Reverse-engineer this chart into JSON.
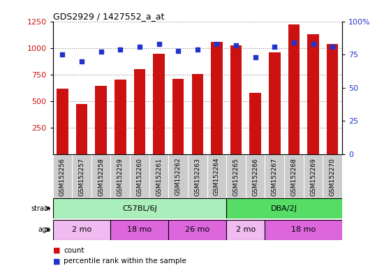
{
  "title": "GDS2929 / 1427552_a_at",
  "samples": [
    "GSM152256",
    "GSM152257",
    "GSM152258",
    "GSM152259",
    "GSM152260",
    "GSM152261",
    "GSM152262",
    "GSM152263",
    "GSM152264",
    "GSM152265",
    "GSM152266",
    "GSM152267",
    "GSM152268",
    "GSM152269",
    "GSM152270"
  ],
  "counts": [
    620,
    470,
    645,
    700,
    800,
    945,
    710,
    755,
    1060,
    1025,
    575,
    960,
    1220,
    1130,
    1040
  ],
  "percentile_ranks": [
    75,
    70,
    77,
    79,
    81,
    83,
    78,
    79,
    83,
    82,
    73,
    81,
    84,
    83,
    81
  ],
  "bar_color": "#cc1111",
  "dot_color": "#2233cc",
  "ylim_left": [
    0,
    1250
  ],
  "ylim_right": [
    0,
    100
  ],
  "yticks_left": [
    250,
    500,
    750,
    1000,
    1250
  ],
  "yticks_right": [
    0,
    25,
    50,
    75,
    100
  ],
  "strain_groups": [
    {
      "label": "C57BL/6J",
      "start": 0,
      "end": 9,
      "color": "#aaeebb"
    },
    {
      "label": "DBA/2J",
      "start": 9,
      "end": 15,
      "color": "#55dd66"
    }
  ],
  "age_groups": [
    {
      "label": "2 mo",
      "start": 0,
      "end": 3,
      "color": "#f0bbf0"
    },
    {
      "label": "18 mo",
      "start": 3,
      "end": 6,
      "color": "#dd66dd"
    },
    {
      "label": "26 mo",
      "start": 6,
      "end": 9,
      "color": "#dd66dd"
    },
    {
      "label": "2 mo",
      "start": 9,
      "end": 11,
      "color": "#f0bbf0"
    },
    {
      "label": "18 mo",
      "start": 11,
      "end": 15,
      "color": "#dd66dd"
    }
  ],
  "label_area_bg": "#cccccc",
  "left_axis_color": "#cc1111",
  "right_axis_color": "#2233cc",
  "grid_color": "#888888"
}
